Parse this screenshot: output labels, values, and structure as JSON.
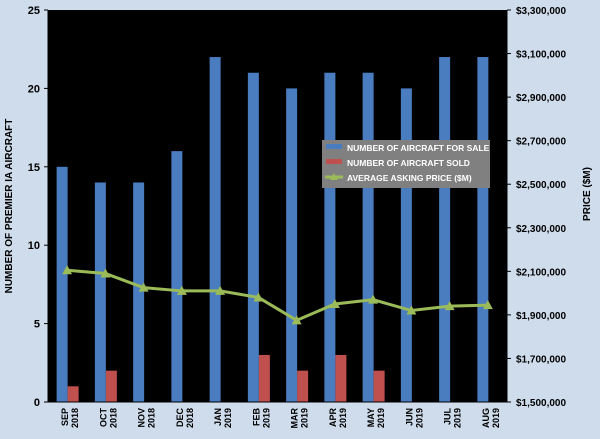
{
  "chart_data": {
    "type": "bar",
    "title": "",
    "categories": [
      [
        "SEP",
        "2018"
      ],
      [
        "OCT",
        "2018"
      ],
      [
        "NOV",
        "2018"
      ],
      [
        "DEC",
        "2018"
      ],
      [
        "JAN",
        "2019"
      ],
      [
        "FEB",
        "2019"
      ],
      [
        "MAR",
        "2019"
      ],
      [
        "APR",
        "2019"
      ],
      [
        "MAY",
        "2019"
      ],
      [
        "JUN",
        "2019"
      ],
      [
        "JUL",
        "2019"
      ],
      [
        "AUG",
        "2019"
      ]
    ],
    "ylabel": "NUMBER OF PREMIER IA AIRCRAFT",
    "y2label": "PRICE ($M)",
    "ylim": [
      0,
      25
    ],
    "yticks": [
      0,
      5,
      10,
      15,
      20,
      25
    ],
    "y2lim": [
      1500000,
      3300000
    ],
    "y2ticks": [
      {
        "value": 1500000,
        "label": "$1,500,000"
      },
      {
        "value": 1700000,
        "label": "$1,700,000"
      },
      {
        "value": 1900000,
        "label": "$1,900,000"
      },
      {
        "value": 2100000,
        "label": "$2,100,000"
      },
      {
        "value": 2300000,
        "label": "$2,300,000"
      },
      {
        "value": 2500000,
        "label": "$2,500,000"
      },
      {
        "value": 2700000,
        "label": "$2,700,000"
      },
      {
        "value": 2900000,
        "label": "$2,900,000"
      },
      {
        "value": 3100000,
        "label": "$3,100,000"
      },
      {
        "value": 3300000,
        "label": "$3,300,000"
      }
    ],
    "grid": false,
    "legend_position": "right-center",
    "series": [
      {
        "name": "NUMBER OF AIRCRAFT FOR SALE",
        "kind": "bar",
        "axis": "left",
        "color": "#4a7cc0",
        "values": [
          15,
          14,
          14,
          16,
          22,
          21,
          20,
          21,
          21,
          20,
          22,
          22
        ]
      },
      {
        "name": "NUMBER OF AIRCRAFT SOLD",
        "kind": "bar",
        "axis": "left",
        "color": "#c0504d",
        "values": [
          1,
          2,
          0,
          0,
          0,
          3,
          2,
          3,
          2,
          0,
          0,
          0
        ]
      },
      {
        "name": "AVERAGE ASKING PRICE ($M)",
        "kind": "line",
        "axis": "right",
        "color": "#9bbb59",
        "values": [
          2105000,
          2090000,
          2025000,
          2010000,
          2010000,
          1980000,
          1875000,
          1950000,
          1970000,
          1920000,
          1940000,
          1945000
        ]
      }
    ]
  },
  "colors": {
    "background": "#cfdcec",
    "plot_area": "#000000",
    "text": "#000000",
    "legend_text": "#ffffff",
    "legend_bg": "#808080"
  }
}
